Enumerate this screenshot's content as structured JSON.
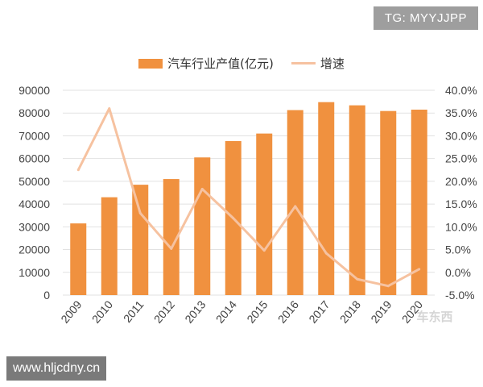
{
  "badges": {
    "top_right": "TG: MYYJJPP",
    "bottom_left": "www.hljcdny.cn"
  },
  "watermark": "车东西",
  "colors": {
    "bar": "#f0913f",
    "line": "#f6c2a0",
    "grid": "#e2e2e2"
  },
  "chart_data": {
    "type": "bar",
    "title": "",
    "categories": [
      "2009",
      "2010",
      "2011",
      "2012",
      "2013",
      "2014",
      "2015",
      "2016",
      "2017",
      "2018",
      "2019",
      "2020"
    ],
    "series": [
      {
        "name": "汽车行业产值(亿元)",
        "type": "bar",
        "axis": "left",
        "values": [
          31500,
          43000,
          48500,
          51000,
          60500,
          67700,
          71000,
          81300,
          84800,
          83400,
          80900,
          81500
        ]
      },
      {
        "name": "增速",
        "type": "line",
        "axis": "right",
        "values": [
          22.5,
          36.0,
          13.0,
          5.2,
          18.3,
          11.9,
          4.8,
          14.5,
          4.2,
          -1.5,
          -3.0,
          0.7
        ]
      }
    ],
    "y_left": {
      "lim": [
        0,
        90000
      ],
      "ticks": [
        "0",
        "10000",
        "20000",
        "30000",
        "40000",
        "50000",
        "60000",
        "70000",
        "80000",
        "90000"
      ]
    },
    "y_right": {
      "lim": [
        -5,
        40
      ],
      "ticks": [
        "-5.0%",
        "0.0%",
        "5.0%",
        "10.0%",
        "15.0%",
        "20.0%",
        "25.0%",
        "30.0%",
        "35.0%",
        "40.0%"
      ]
    },
    "grid": true,
    "legend_position": "top-center"
  }
}
